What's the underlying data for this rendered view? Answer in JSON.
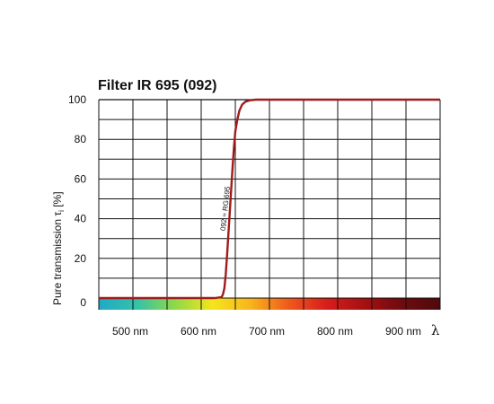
{
  "chart_data": {
    "type": "line",
    "title": "Filter IR 695 (092)",
    "ylabel": "Pure transmission τ",
    "ylabel_sub": "i",
    "ylabel_unit": " [%]",
    "xlabel": "λ",
    "xlim": [
      450,
      950
    ],
    "ylim": [
      0,
      100
    ],
    "yticks": [
      0,
      20,
      40,
      60,
      80,
      100
    ],
    "xtick_labels": [
      {
        "value": 500,
        "label": "500 nm"
      },
      {
        "value": 600,
        "label": "600 nm"
      },
      {
        "value": 700,
        "label": "700 nm"
      },
      {
        "value": 800,
        "label": "800 nm"
      },
      {
        "value": 900,
        "label": "900 nm"
      }
    ],
    "grid": true,
    "series": [
      {
        "name": "092 ≈ RG 695",
        "color": "#a01c1c",
        "x": [
          450,
          600,
          620,
          630,
          632,
          634,
          636,
          638,
          640,
          642,
          644,
          646,
          648,
          650,
          653,
          656,
          660,
          665,
          672,
          680,
          700,
          800,
          950
        ],
        "y": [
          0,
          0,
          0,
          0.5,
          2,
          5,
          12,
          22,
          33,
          44,
          55,
          66,
          76,
          84,
          90,
          94.5,
          97.5,
          99,
          99.7,
          100,
          100,
          100,
          100
        ]
      }
    ],
    "spectrum_colors": [
      "#1fa9c9",
      "#34c2a8",
      "#8ed84a",
      "#f4e51c",
      "#f8b51c",
      "#ef5a1c",
      "#d71e1c",
      "#a61012",
      "#6e0b10",
      "#4e0a0d"
    ]
  }
}
